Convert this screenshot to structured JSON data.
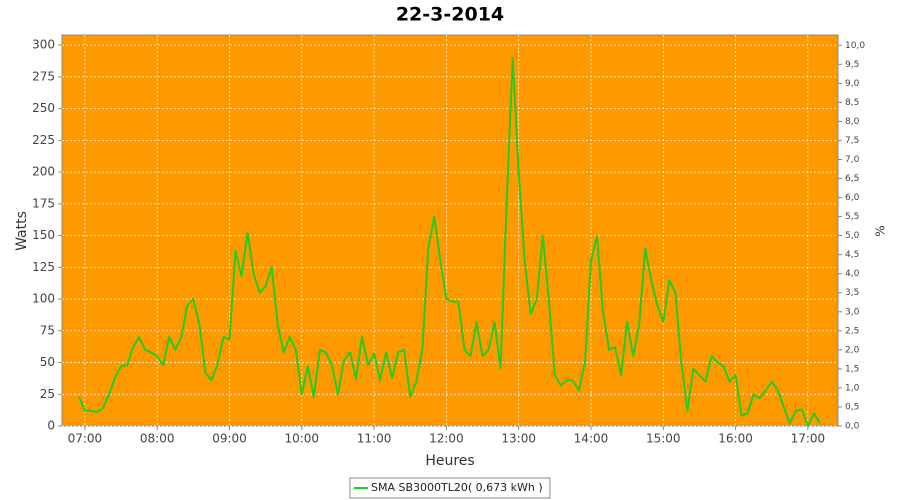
{
  "chart_data": {
    "type": "line",
    "title": "22-3-2014",
    "x_label": "Heures",
    "y_label": "Watts",
    "y2_label": "%",
    "background": "#ff9900",
    "grid": true,
    "x": [
      "06:55",
      "07:00",
      "07:05",
      "07:10",
      "07:15",
      "07:20",
      "07:25",
      "07:30",
      "07:35",
      "07:40",
      "07:45",
      "07:50",
      "07:55",
      "08:00",
      "08:05",
      "08:10",
      "08:15",
      "08:20",
      "08:25",
      "08:30",
      "08:35",
      "08:40",
      "08:45",
      "08:50",
      "08:55",
      "09:00",
      "09:05",
      "09:10",
      "09:15",
      "09:20",
      "09:25",
      "09:30",
      "09:35",
      "09:40",
      "09:45",
      "09:50",
      "09:55",
      "10:00",
      "10:05",
      "10:10",
      "10:15",
      "10:20",
      "10:25",
      "10:30",
      "10:35",
      "10:40",
      "10:45",
      "10:50",
      "10:55",
      "11:00",
      "11:05",
      "11:10",
      "11:15",
      "11:20",
      "11:25",
      "11:30",
      "11:35",
      "11:40",
      "11:45",
      "11:50",
      "11:55",
      "12:00",
      "12:05",
      "12:10",
      "12:15",
      "12:20",
      "12:25",
      "12:30",
      "12:35",
      "12:40",
      "12:45",
      "12:50",
      "12:55",
      "13:00",
      "13:05",
      "13:10",
      "13:15",
      "13:20",
      "13:25",
      "13:30",
      "13:35",
      "13:40",
      "13:45",
      "13:50",
      "13:55",
      "14:00",
      "14:05",
      "14:10",
      "14:15",
      "14:20",
      "14:25",
      "14:30",
      "14:35",
      "14:40",
      "14:45",
      "14:50",
      "14:55",
      "15:00",
      "15:05",
      "15:10",
      "15:15",
      "15:20",
      "15:25",
      "15:30",
      "15:35",
      "15:40",
      "15:45",
      "15:50",
      "15:55",
      "16:00",
      "16:05",
      "16:10",
      "16:15",
      "16:20",
      "16:25",
      "16:30",
      "16:35",
      "16:40",
      "16:45",
      "16:50",
      "16:55",
      "17:00",
      "17:05",
      "17:10"
    ],
    "series": [
      {
        "name": "SMA SB3000TL20( 0,673 kWh )",
        "color": "#22cc22",
        "values": [
          23,
          12,
          12,
          11,
          14,
          25,
          38,
          47,
          48,
          62,
          70,
          60,
          58,
          55,
          48,
          70,
          60,
          70,
          95,
          100,
          80,
          42,
          36,
          48,
          70,
          68,
          138,
          118,
          152,
          120,
          105,
          110,
          125,
          80,
          58,
          70,
          60,
          25,
          47,
          23,
          60,
          58,
          48,
          25,
          52,
          58,
          37,
          70,
          48,
          57,
          36,
          58,
          38,
          58,
          60,
          23,
          35,
          60,
          140,
          165,
          130,
          100,
          98,
          98,
          60,
          55,
          82,
          55,
          60,
          82,
          45,
          175,
          290,
          200,
          130,
          88,
          100,
          150,
          100,
          40,
          32,
          36,
          36,
          28,
          50,
          130,
          150,
          90,
          60,
          62,
          40,
          82,
          55,
          80,
          140,
          115,
          95,
          82,
          115,
          105,
          50,
          12,
          45,
          40,
          35,
          55,
          50,
          47,
          35,
          40,
          8,
          10,
          25,
          22,
          28,
          35,
          28,
          15,
          2,
          12,
          13,
          0,
          10,
          2
        ]
      }
    ],
    "xlim": [
      "06:41",
      "17:25"
    ],
    "xticks": [
      "07:00",
      "08:00",
      "09:00",
      "10:00",
      "11:00",
      "12:00",
      "13:00",
      "14:00",
      "15:00",
      "16:00",
      "17:00"
    ],
    "ylim": [
      0,
      308
    ],
    "yticks": [
      0,
      25,
      50,
      75,
      100,
      125,
      150,
      175,
      200,
      225,
      250,
      275,
      300
    ],
    "y2lim": [
      0,
      10.27
    ],
    "y2ticks": [
      {
        "value": 0,
        "label": "0,0"
      },
      {
        "value": 0.5,
        "label": "0,5"
      },
      {
        "value": 1,
        "label": "1,0"
      },
      {
        "value": 1.5,
        "label": "1,5"
      },
      {
        "value": 2,
        "label": "2,0"
      },
      {
        "value": 2.5,
        "label": "2,5"
      },
      {
        "value": 3,
        "label": "3,0"
      },
      {
        "value": 3.5,
        "label": "3,5"
      },
      {
        "value": 4,
        "label": "4,0"
      },
      {
        "value": 4.5,
        "label": "4,5"
      },
      {
        "value": 5,
        "label": "5,0"
      },
      {
        "value": 5.5,
        "label": "5,5"
      },
      {
        "value": 6,
        "label": "6,0"
      },
      {
        "value": 6.5,
        "label": "6,5"
      },
      {
        "value": 7,
        "label": "7,0"
      },
      {
        "value": 7.5,
        "label": "7,5"
      },
      {
        "value": 8,
        "label": "8,0"
      },
      {
        "value": 8.5,
        "label": "8,5"
      },
      {
        "value": 9,
        "label": "9,0"
      },
      {
        "value": 9.5,
        "label": "9,5"
      },
      {
        "value": 10,
        "label": "10,0"
      }
    ]
  }
}
